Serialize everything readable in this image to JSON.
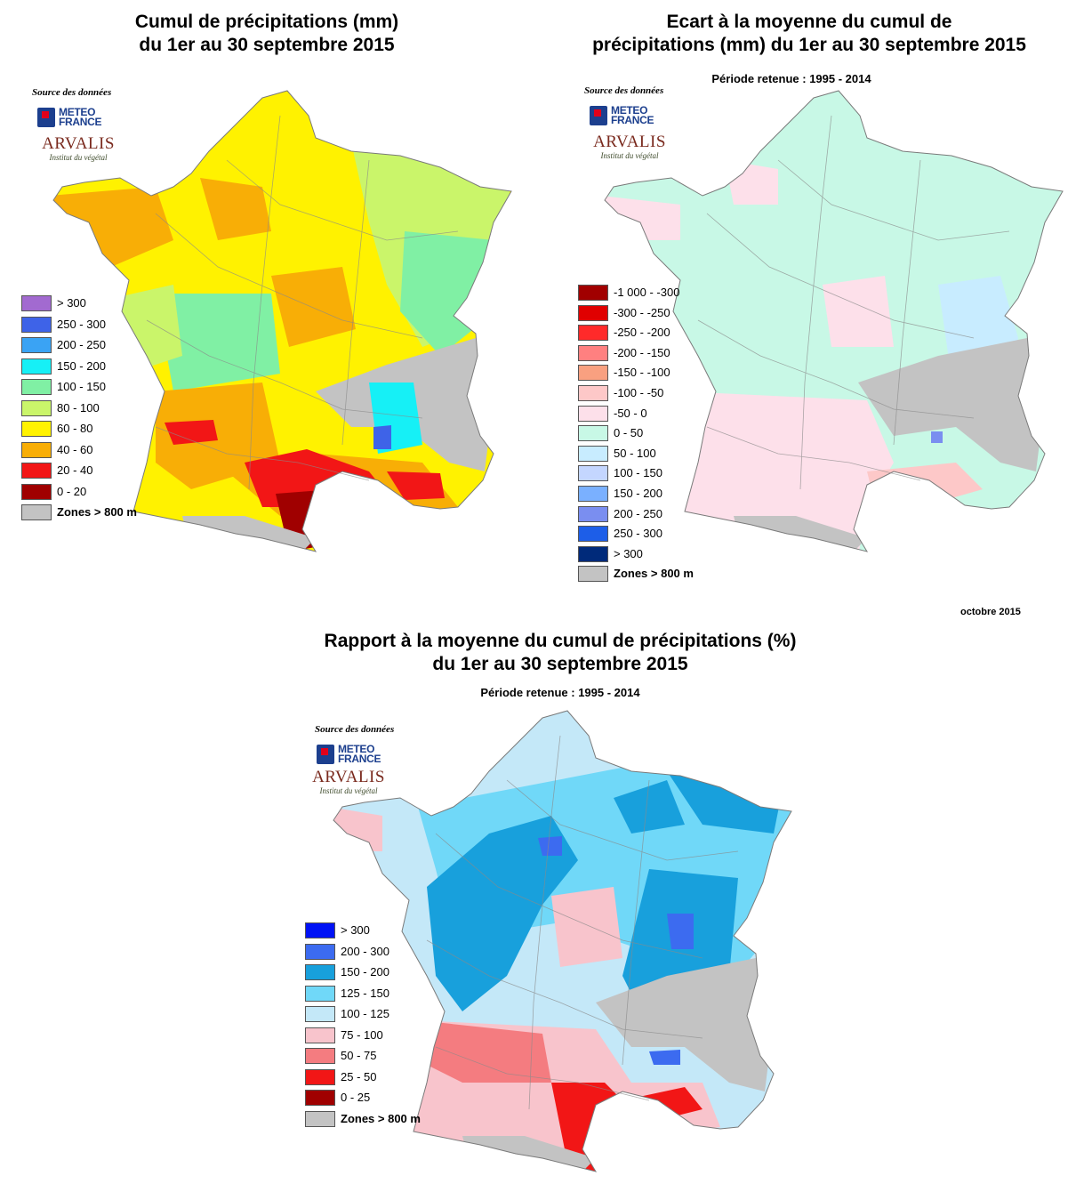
{
  "maps": [
    {
      "id": "cumul",
      "title_line1": "Cumul de précipitations (mm)",
      "title_line2": "du 1er au 30 septembre 2015",
      "subtitle": "",
      "source_label": "Source des données",
      "legend": [
        {
          "label": "> 300",
          "color": "#a26ad0"
        },
        {
          "label": "250 - 300",
          "color": "#3e63e8"
        },
        {
          "label": "200 - 250",
          "color": "#3aa3f4"
        },
        {
          "label": "150 - 200",
          "color": "#16f0f6"
        },
        {
          "label": "100 - 150",
          "color": "#80f0a4"
        },
        {
          "label": "80 - 100",
          "color": "#caf56a"
        },
        {
          "label": "60 - 80",
          "color": "#fff200"
        },
        {
          "label": "40 - 60",
          "color": "#f8ae06"
        },
        {
          "label": "20 - 40",
          "color": "#f21616"
        },
        {
          "label": "0 - 20",
          "color": "#a00000"
        },
        {
          "label": "Zones > 800 m",
          "color": "#c3c3c3"
        }
      ],
      "palette": {
        "base": "#fff200",
        "alt1": "#f8ae06",
        "alt2": "#caf56a",
        "alt3": "#80f0a4",
        "alt4": "#16f0f6",
        "alt5": "#3e63e8",
        "alt6": "#f21616",
        "alt7": "#a00000",
        "mountain": "#c3c3c3"
      }
    },
    {
      "id": "ecart",
      "title_line1": "Ecart à la moyenne du cumul de",
      "title_line2": "précipitations (mm) du 1er au 30 septembre 2015",
      "subtitle": "Période retenue : 1995 - 2014",
      "source_label": "Source des données",
      "legend": [
        {
          "label": "-1 000 - -300",
          "color": "#a10000"
        },
        {
          "label": "-300 - -250",
          "color": "#e00000"
        },
        {
          "label": "-250 - -200",
          "color": "#ff2a2a"
        },
        {
          "label": "-200 - -150",
          "color": "#ff8080"
        },
        {
          "label": "-150 - -100",
          "color": "#f9a080"
        },
        {
          "label": "-100 - -50",
          "color": "#fdc8c8"
        },
        {
          "label": "-50 - 0",
          "color": "#fde0ea"
        },
        {
          "label": "0 - 50",
          "color": "#c8f8e6"
        },
        {
          "label": "50 - 100",
          "color": "#c8ecff"
        },
        {
          "label": "100 - 150",
          "color": "#c4d6ff"
        },
        {
          "label": "150 - 200",
          "color": "#7ab0ff"
        },
        {
          "label": "200 - 250",
          "color": "#7a8ef0"
        },
        {
          "label": "250 - 300",
          "color": "#1d5ee8"
        },
        {
          "label": "> 300",
          "color": "#002a7a"
        },
        {
          "label": "Zones > 800 m",
          "color": "#c3c3c3"
        }
      ],
      "palette": {
        "base": "#c8f8e6",
        "alt1": "#fde0ea",
        "alt2": "#c8ecff",
        "alt3": "#fdc8c8",
        "alt4": "#7a8ef0",
        "mountain": "#c3c3c3"
      }
    },
    {
      "id": "rapport",
      "title_line1": "Rapport à la moyenne du cumul de précipitations (%)",
      "title_line2": "du 1er au 30 septembre 2015",
      "subtitle": "Période retenue :  1995 - 2014",
      "source_label": "Source des données",
      "legend": [
        {
          "label": "> 300",
          "color": "#0012f5"
        },
        {
          "label": "200 - 300",
          "color": "#3c6bf0"
        },
        {
          "label": "150 - 200",
          "color": "#18a0dc"
        },
        {
          "label": "125 - 150",
          "color": "#70d8f8"
        },
        {
          "label": "100 - 125",
          "color": "#c4e8f8"
        },
        {
          "label": "75 - 100",
          "color": "#f8c4cc"
        },
        {
          "label": "50 - 75",
          "color": "#f47c80"
        },
        {
          "label": "25 - 50",
          "color": "#f21616"
        },
        {
          "label": "0 - 25",
          "color": "#a00000"
        },
        {
          "label": "Zones > 800 m",
          "color": "#c3c3c3"
        }
      ],
      "palette": {
        "base": "#c4e8f8",
        "alt1": "#70d8f8",
        "alt2": "#18a0dc",
        "alt3": "#f8c4cc",
        "alt4": "#f47c80",
        "alt5": "#f21616",
        "alt6": "#3c6bf0",
        "mountain": "#c3c3c3"
      }
    }
  ],
  "logos": {
    "meteo_line1": "METEO",
    "meteo_line2": "FRANCE",
    "arvalis_name": "ARVALIS",
    "arvalis_sub": "Institut du végétal"
  },
  "footer": {
    "date": "octobre 2015"
  }
}
